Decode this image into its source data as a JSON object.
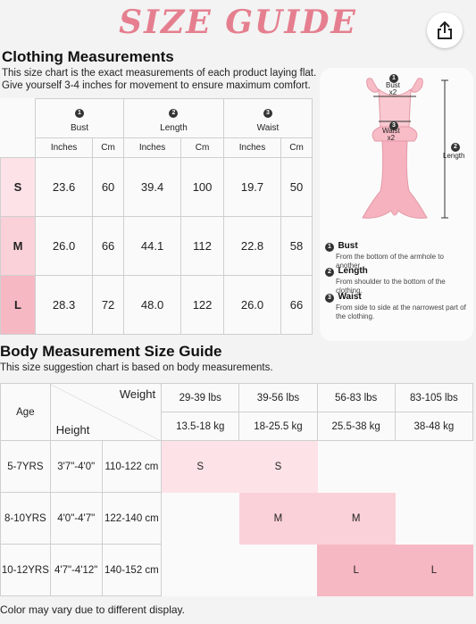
{
  "title": "SIZE GUIDE",
  "share_icon": "share-icon",
  "clothing": {
    "heading": "Clothing Measurements",
    "desc1": "This size chart is the exact measurements of each product laying flat.",
    "desc2": "Give yourself 3-4 inches for movement to ensure maximum comfort.",
    "groups": [
      {
        "num": "1",
        "label": "Bust"
      },
      {
        "num": "2",
        "label": "Length"
      },
      {
        "num": "3",
        "label": "Waist"
      }
    ],
    "units": [
      "Inches",
      "Cm",
      "Inches",
      "Cm",
      "Inches",
      "Cm"
    ],
    "rows": [
      {
        "size": "S",
        "values": [
          "23.6",
          "60",
          "39.4",
          "100",
          "19.7",
          "50"
        ]
      },
      {
        "size": "M",
        "values": [
          "26.0",
          "66",
          "44.1",
          "112",
          "22.8",
          "58"
        ]
      },
      {
        "size": "L",
        "values": [
          "28.3",
          "72",
          "48.0",
          "122",
          "26.0",
          "66"
        ]
      }
    ]
  },
  "diagram": {
    "bust_label": "Bust",
    "bust_x": "x2",
    "waist_label": "Waist",
    "waist_x": "x2",
    "length_label": "Length",
    "n1": "1",
    "n2": "2",
    "n3": "3",
    "legend": [
      {
        "num": "1",
        "title": "Bust",
        "desc": "From the bottom of the armhole to another."
      },
      {
        "num": "2",
        "title": "Length",
        "desc": "From shoulder to the bottom of the clothing."
      },
      {
        "num": "3",
        "title": "Waist",
        "desc": "From side to side at the narrowest part of the clothing."
      }
    ]
  },
  "body": {
    "heading": "Body Measurement Size Guide",
    "desc": "This size suggestion chart is based on body measurements.",
    "age_label": "Age",
    "weight_label": "Weight",
    "height_label": "Height",
    "weights_lbs": [
      "29-39 lbs",
      "39-56 lbs",
      "56-83 lbs",
      "83-105 lbs"
    ],
    "weights_kg": [
      "13.5-18 kg",
      "18-25.5 kg",
      "25.5-38 kg",
      "38-48 kg"
    ],
    "rows": [
      {
        "age": "5-7YRS",
        "height_ft": "3'7\"-4'0\"",
        "height_cm": "110-122 cm",
        "sizes": [
          "S",
          "S",
          "",
          ""
        ]
      },
      {
        "age": "8-10YRS",
        "height_ft": "4'0\"-4'7\"",
        "height_cm": "122-140 cm",
        "sizes": [
          "",
          "M",
          "M",
          ""
        ]
      },
      {
        "age": "10-12YRS",
        "height_ft": "4'7\"-4'12\"",
        "height_cm": "140-152 cm",
        "sizes": [
          "",
          "",
          "L",
          "L"
        ]
      }
    ]
  },
  "footer": "Color may vary due to different display.",
  "colors": {
    "accent": "#e57f8f",
    "pink_light": "#fde3e8",
    "pink_mid": "#fbd1d9",
    "pink_dark": "#f6b8c3"
  }
}
